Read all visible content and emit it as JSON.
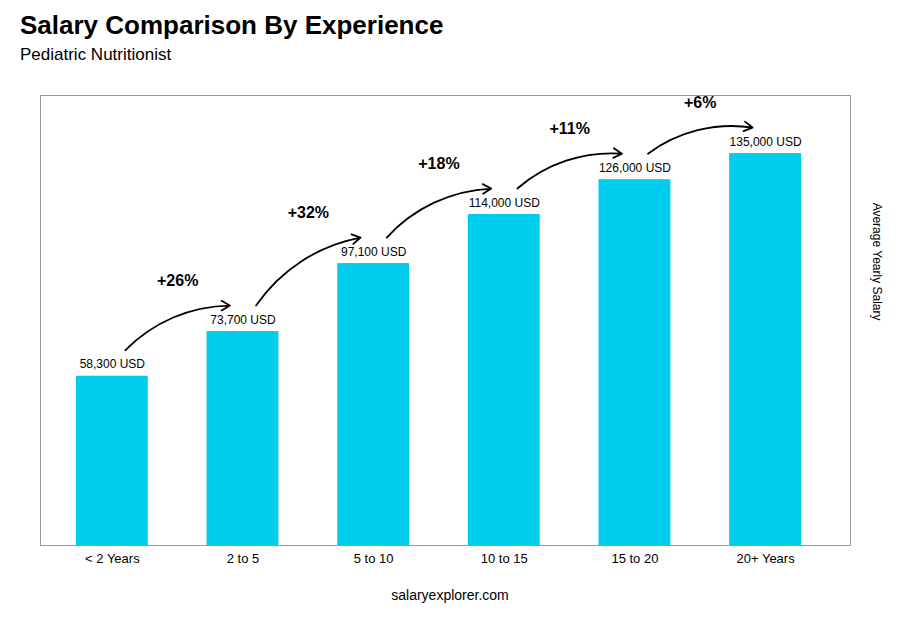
{
  "chart_data": {
    "type": "bar",
    "title": "Salary Comparison By Experience",
    "subtitle": "Pediatric Nutritionist",
    "ylabel": "Average Yearly Salary",
    "categories": [
      "< 2 Years",
      "2 to 5",
      "5 to 10",
      "10 to 15",
      "15 to 20",
      "20+ Years"
    ],
    "values": [
      58300,
      73700,
      97100,
      114000,
      126000,
      135000
    ],
    "value_labels": [
      "58,300 USD",
      "73,700 USD",
      "97,100 USD",
      "114,000 USD",
      "126,000 USD",
      "135,000 USD"
    ],
    "data_labels": true,
    "annotations": [
      "+26%",
      "+32%",
      "+18%",
      "+11%",
      "+6%"
    ],
    "caption": "salaryexplorer.com",
    "color": "#00ccee",
    "ylim": [
      0,
      155000
    ],
    "tick_labels": "x",
    "grid": false
  }
}
